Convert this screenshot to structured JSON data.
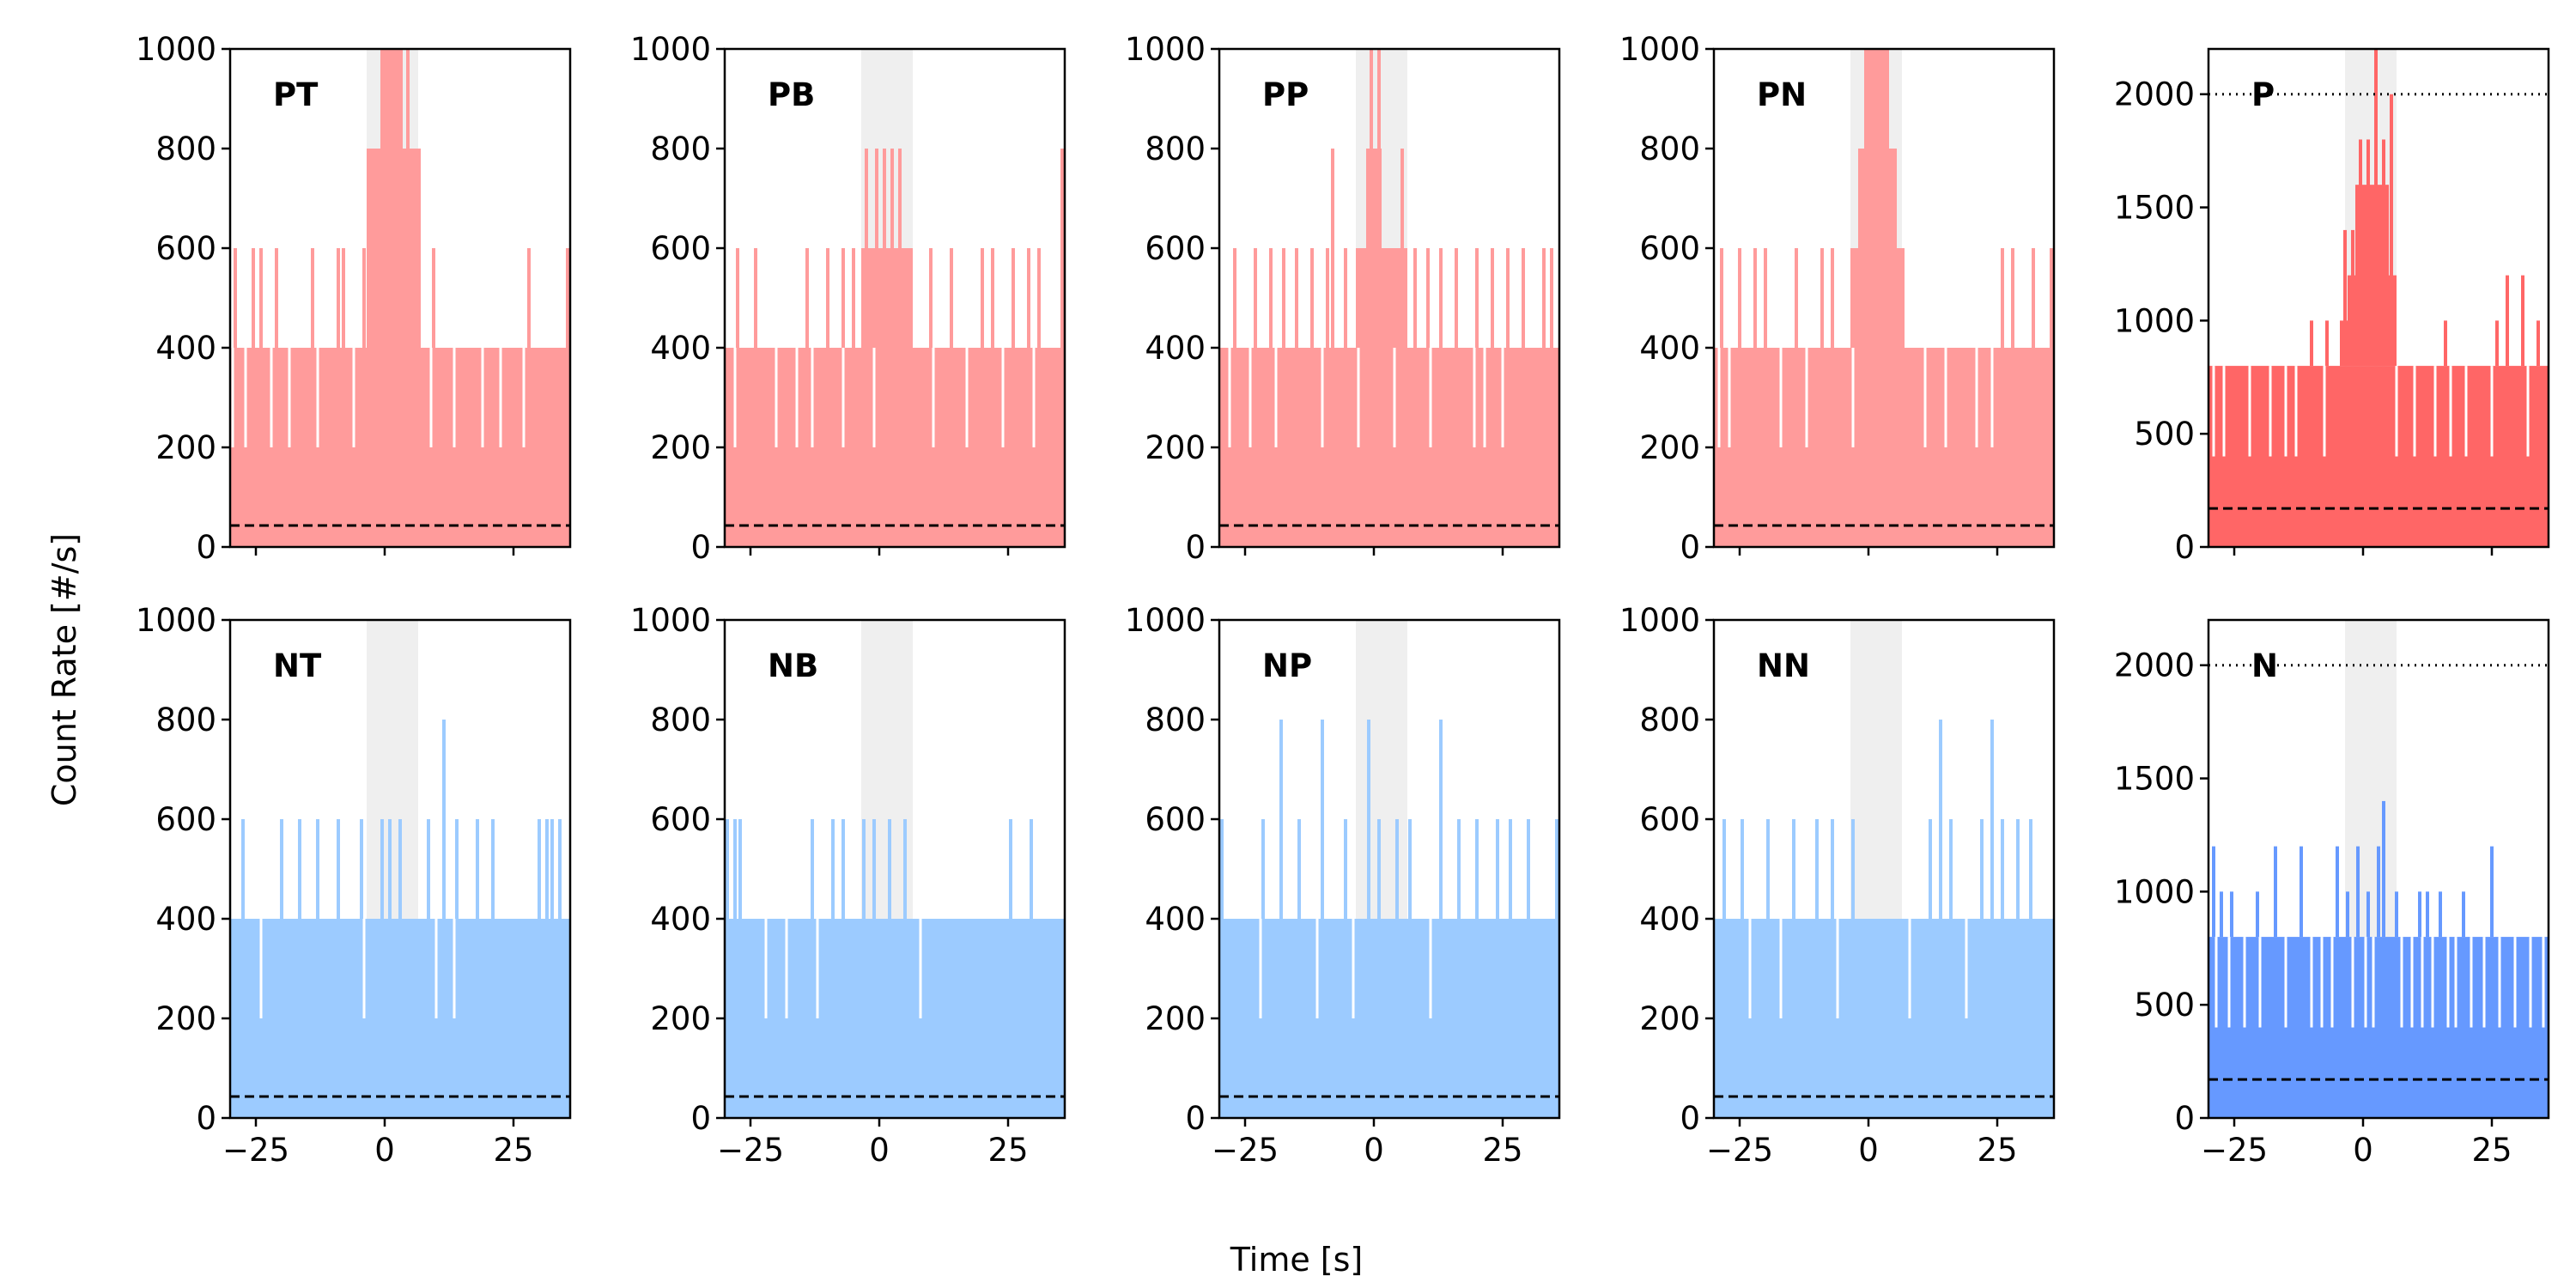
{
  "figure": {
    "ylabel": "Count Rate [#/s]",
    "xlabel": "Time [s]"
  },
  "chart_data": [
    {
      "type": "area",
      "panel": "PT",
      "title": "PT",
      "color": "#ff9b9b",
      "xlim": [
        -30,
        36
      ],
      "ylim": [
        0,
        1000
      ],
      "yticks": [
        0,
        200,
        400,
        600,
        800,
        1000
      ],
      "xticks": [
        -25,
        0,
        25
      ],
      "xticks_labeled": false,
      "grey_band": [
        -3.5,
        6.5
      ],
      "dashed_level": 43,
      "base_level": 400,
      "spikes": [
        [
          -29,
          600
        ],
        [
          -25.5,
          600
        ],
        [
          -24,
          600
        ],
        [
          -21,
          600
        ],
        [
          -14,
          600
        ],
        [
          -9,
          600
        ],
        [
          -8,
          600
        ],
        [
          -4,
          600
        ],
        [
          28,
          600
        ],
        [
          35.5,
          600
        ],
        [
          9.5,
          600
        ]
      ],
      "burst": {
        "x0": -3.5,
        "x1": 7,
        "steps": [
          [
            -3.5,
            800
          ],
          [
            -0.5,
            1000
          ],
          [
            3.5,
            800
          ]
        ],
        "spikes": [
          [
            -0.5,
            1000
          ],
          [
            1,
            1000
          ],
          [
            2.5,
            1000
          ],
          [
            4.5,
            1000
          ]
        ]
      },
      "dips": [
        -29.5,
        -27,
        -22,
        -18.5,
        -13,
        -6,
        9,
        13.5,
        19,
        22.5,
        27
      ]
    },
    {
      "type": "area",
      "panel": "PB",
      "title": "PB",
      "color": "#ff9b9b",
      "xlim": [
        -30,
        36
      ],
      "ylim": [
        0,
        1000
      ],
      "yticks": [
        0,
        200,
        400,
        600,
        800,
        1000
      ],
      "xticks": [
        -25,
        0,
        25
      ],
      "xticks_labeled": false,
      "grey_band": [
        -3.5,
        6.5
      ],
      "dashed_level": 43,
      "base_level": 400,
      "spikes": [
        [
          -27.5,
          600
        ],
        [
          -24,
          600
        ],
        [
          -14,
          600
        ],
        [
          -10,
          600
        ],
        [
          -7,
          600
        ],
        [
          -5,
          600
        ],
        [
          10,
          600
        ],
        [
          14,
          600
        ],
        [
          20,
          600
        ],
        [
          22,
          600
        ],
        [
          26,
          600
        ],
        [
          29,
          600
        ],
        [
          31,
          600
        ],
        [
          35.5,
          800
        ]
      ],
      "burst": {
        "x0": -3.5,
        "x1": 6.5,
        "steps": [
          [
            -3.5,
            600
          ]
        ],
        "spikes": [
          [
            -2.5,
            800
          ],
          [
            -0.5,
            800
          ],
          [
            1,
            800
          ],
          [
            2.5,
            800
          ],
          [
            4,
            800
          ]
        ]
      },
      "dips": [
        -28,
        -20,
        -16,
        -13,
        -7,
        -1,
        10.5,
        17,
        24,
        30
      ]
    },
    {
      "type": "area",
      "panel": "PP",
      "title": "PP",
      "color": "#ff9b9b",
      "xlim": [
        -30,
        36
      ],
      "ylim": [
        0,
        1000
      ],
      "yticks": [
        0,
        200,
        400,
        600,
        800,
        1000
      ],
      "xticks": [
        -25,
        0,
        25
      ],
      "xticks_labeled": false,
      "grey_band": [
        -3.5,
        6.5
      ],
      "dashed_level": 43,
      "base_level": 400,
      "spikes": [
        [
          -27,
          600
        ],
        [
          -23,
          600
        ],
        [
          -20,
          600
        ],
        [
          -17.5,
          600
        ],
        [
          -15,
          600
        ],
        [
          -12,
          600
        ],
        [
          -9,
          600
        ],
        [
          -5.5,
          600
        ],
        [
          8,
          600
        ],
        [
          10.5,
          600
        ],
        [
          13,
          600
        ],
        [
          16,
          600
        ],
        [
          20,
          600
        ],
        [
          23,
          600
        ],
        [
          26,
          600
        ],
        [
          29,
          600
        ],
        [
          33,
          600
        ],
        [
          34.5,
          600
        ]
      ],
      "burst": {
        "x0": -3.5,
        "x1": 6.5,
        "steps": [
          [
            -3.5,
            600
          ],
          [
            -1.5,
            800
          ],
          [
            1.5,
            600
          ]
        ],
        "spikes": [
          [
            -8,
            800
          ],
          [
            -0.5,
            1000
          ],
          [
            1,
            1000
          ],
          [
            5.5,
            800
          ]
        ]
      },
      "dips": [
        -28,
        -24,
        -19,
        -10,
        -3,
        4,
        11,
        19.5,
        21.5,
        25
      ]
    },
    {
      "type": "area",
      "panel": "PN",
      "title": "PN",
      "color": "#ff9b9b",
      "xlim": [
        -30,
        36
      ],
      "ylim": [
        0,
        1000
      ],
      "yticks": [
        0,
        200,
        400,
        600,
        800,
        1000
      ],
      "xticks": [
        -25,
        0,
        25
      ],
      "xticks_labeled": false,
      "grey_band": [
        -3.5,
        6.5
      ],
      "dashed_level": 43,
      "base_level": 400,
      "spikes": [
        [
          -28.5,
          600
        ],
        [
          -25,
          600
        ],
        [
          -22,
          600
        ],
        [
          -20,
          600
        ],
        [
          -14,
          600
        ],
        [
          -9,
          600
        ],
        [
          -7,
          600
        ],
        [
          26,
          600
        ],
        [
          28,
          600
        ],
        [
          32,
          600
        ],
        [
          35.5,
          600
        ]
      ],
      "burst": {
        "x0": -3.5,
        "x1": 7,
        "steps": [
          [
            -3.5,
            600
          ],
          [
            -2,
            800
          ],
          [
            -0.5,
            1000
          ],
          [
            4,
            800
          ],
          [
            5.5,
            600
          ]
        ],
        "spikes": [
          [
            -0.5,
            1000
          ],
          [
            1,
            1000
          ],
          [
            2.5,
            1000
          ]
        ]
      },
      "dips": [
        -29,
        -27,
        -17,
        -12,
        -3,
        11,
        15,
        21,
        24
      ]
    },
    {
      "type": "area",
      "panel": "P",
      "title": "P",
      "color": "#ff6666",
      "xlim": [
        -30,
        36
      ],
      "ylim": [
        0,
        2200
      ],
      "yticks": [
        0,
        500,
        1000,
        1500,
        2000
      ],
      "xticks": [
        -25,
        0,
        25
      ],
      "xticks_labeled": false,
      "grey_band": [
        -3.5,
        6.5
      ],
      "dashed_level": 170,
      "dotted_level": 2000,
      "base_level": 800,
      "spikes": [
        [
          -30,
          800
        ],
        [
          -10,
          1000
        ],
        [
          -7,
          1000
        ],
        [
          -2,
          1400
        ],
        [
          16,
          1000
        ],
        [
          26,
          1000
        ],
        [
          28,
          1200
        ],
        [
          31,
          1200
        ],
        [
          34,
          1000
        ],
        [
          35.5,
          800
        ]
      ],
      "burst": {
        "x0": -4.5,
        "x1": 6.5,
        "steps": [
          [
            -4.5,
            1000
          ],
          [
            -3,
            1200
          ],
          [
            -1.5,
            1600
          ],
          [
            5,
            1200
          ]
        ],
        "spikes": [
          [
            -3.5,
            1400
          ],
          [
            -0.5,
            1800
          ],
          [
            1,
            1800
          ],
          [
            2.5,
            2200
          ],
          [
            4,
            1800
          ],
          [
            5.5,
            2000
          ]
        ]
      },
      "dips": [
        -29,
        -27,
        -22,
        -18,
        -15,
        -13,
        -7.5,
        6.5,
        10,
        14,
        17,
        20,
        25,
        32
      ]
    },
    {
      "type": "area",
      "panel": "NT",
      "title": "NT",
      "color": "#9ccbff",
      "xlim": [
        -30,
        36
      ],
      "ylim": [
        0,
        1000
      ],
      "yticks": [
        0,
        200,
        400,
        600,
        800,
        1000
      ],
      "xticks": [
        -25,
        0,
        25
      ],
      "xticks_labeled": true,
      "grey_band": [
        -3.5,
        6.5
      ],
      "dashed_level": 43,
      "base_level": 400,
      "spikes": [
        [
          -27.5,
          600
        ],
        [
          -20,
          600
        ],
        [
          -16.5,
          600
        ],
        [
          -13,
          600
        ],
        [
          -9,
          600
        ],
        [
          -4.5,
          600
        ],
        [
          -0.5,
          600
        ],
        [
          1,
          600
        ],
        [
          3,
          600
        ],
        [
          8.5,
          600
        ],
        [
          11.5,
          800
        ],
        [
          14,
          600
        ],
        [
          18,
          600
        ],
        [
          21,
          600
        ],
        [
          30,
          600
        ],
        [
          31.5,
          600
        ],
        [
          32.5,
          600
        ],
        [
          34,
          600
        ]
      ],
      "burst": null,
      "dips": [
        -24,
        -4,
        10,
        13.5
      ]
    },
    {
      "type": "area",
      "panel": "NB",
      "title": "NB",
      "color": "#9ccbff",
      "xlim": [
        -30,
        36
      ],
      "ylim": [
        0,
        1000
      ],
      "yticks": [
        0,
        200,
        400,
        600,
        800,
        1000
      ],
      "xticks": [
        -25,
        0,
        25
      ],
      "xticks_labeled": true,
      "grey_band": [
        -3.5,
        6.5
      ],
      "dashed_level": 43,
      "base_level": 400,
      "spikes": [
        [
          -29.5,
          600
        ],
        [
          -28,
          600
        ],
        [
          -27,
          600
        ],
        [
          -13,
          600
        ],
        [
          -9,
          600
        ],
        [
          -7,
          600
        ],
        [
          -3,
          600
        ],
        [
          -1,
          600
        ],
        [
          2,
          600
        ],
        [
          5,
          600
        ],
        [
          25.5,
          600
        ],
        [
          29.5,
          600
        ]
      ],
      "burst": null,
      "dips": [
        -22,
        -18,
        -12,
        8
      ]
    },
    {
      "type": "area",
      "panel": "NP",
      "title": "NP",
      "color": "#9ccbff",
      "xlim": [
        -30,
        36
      ],
      "ylim": [
        0,
        1000
      ],
      "yticks": [
        0,
        200,
        400,
        600,
        800,
        1000
      ],
      "xticks": [
        -25,
        0,
        25
      ],
      "xticks_labeled": true,
      "grey_band": [
        -3.5,
        6.5
      ],
      "dashed_level": 43,
      "base_level": 400,
      "spikes": [
        [
          -29.5,
          600
        ],
        [
          -21.5,
          600
        ],
        [
          -18,
          800
        ],
        [
          -14.5,
          600
        ],
        [
          -10,
          800
        ],
        [
          -5.5,
          600
        ],
        [
          -1,
          800
        ],
        [
          1,
          600
        ],
        [
          4.5,
          600
        ],
        [
          7,
          600
        ],
        [
          13,
          800
        ],
        [
          16.5,
          600
        ],
        [
          20,
          600
        ],
        [
          24,
          600
        ],
        [
          26.5,
          600
        ],
        [
          30,
          600
        ],
        [
          35.5,
          600
        ]
      ],
      "burst": null,
      "dips": [
        -22,
        -11,
        -4,
        11
      ]
    },
    {
      "type": "area",
      "panel": "NN",
      "title": "NN",
      "color": "#9ccbff",
      "xlim": [
        -30,
        36
      ],
      "ylim": [
        0,
        1000
      ],
      "yticks": [
        0,
        200,
        400,
        600,
        800,
        1000
      ],
      "xticks": [
        -25,
        0,
        25
      ],
      "xticks_labeled": true,
      "grey_band": [
        -3.5,
        6.5
      ],
      "dashed_level": 43,
      "base_level": 400,
      "spikes": [
        [
          -28,
          600
        ],
        [
          -24.5,
          600
        ],
        [
          -19.5,
          600
        ],
        [
          -14.5,
          600
        ],
        [
          -10,
          600
        ],
        [
          -7,
          600
        ],
        [
          -3,
          600
        ],
        [
          12,
          600
        ],
        [
          14,
          800
        ],
        [
          16,
          600
        ],
        [
          22,
          600
        ],
        [
          24,
          800
        ],
        [
          26,
          600
        ],
        [
          29,
          600
        ],
        [
          31.5,
          600
        ]
      ],
      "burst": null,
      "dips": [
        -23,
        -17,
        -6,
        8,
        19
      ]
    },
    {
      "type": "area",
      "panel": "N",
      "title": "N",
      "color": "#6699ff",
      "xlim": [
        -30,
        36
      ],
      "ylim": [
        0,
        2200
      ],
      "yticks": [
        0,
        500,
        1000,
        1500,
        2000
      ],
      "xticks": [
        -25,
        0,
        25
      ],
      "xticks_labeled": true,
      "grey_band": [
        -3.5,
        6.5
      ],
      "dashed_level": 170,
      "dotted_level": 2000,
      "base_level": 800,
      "spikes": [
        [
          -29,
          1200
        ],
        [
          -27.5,
          1000
        ],
        [
          -25.5,
          1000
        ],
        [
          -20.5,
          1000
        ],
        [
          -17,
          1200
        ],
        [
          -12,
          1200
        ],
        [
          -5,
          1200
        ],
        [
          -3,
          1000
        ],
        [
          -1,
          1200
        ],
        [
          1,
          1000
        ],
        [
          3,
          1200
        ],
        [
          4,
          1400
        ],
        [
          6.5,
          1000
        ],
        [
          11,
          1000
        ],
        [
          12.5,
          1000
        ],
        [
          15,
          1000
        ],
        [
          19.5,
          1000
        ],
        [
          25,
          1200
        ],
        [
          28.5,
          800
        ],
        [
          31,
          800
        ],
        [
          34,
          800
        ]
      ],
      "burst": null,
      "dips": [
        -28.5,
        -26,
        -23,
        -20,
        -15,
        -10,
        -8,
        -6,
        -2,
        0.5,
        2,
        7.5,
        9.5,
        11.5,
        13.5,
        16.5,
        18,
        21,
        23.5,
        26.5,
        29.5,
        32.5,
        35
      ]
    }
  ]
}
